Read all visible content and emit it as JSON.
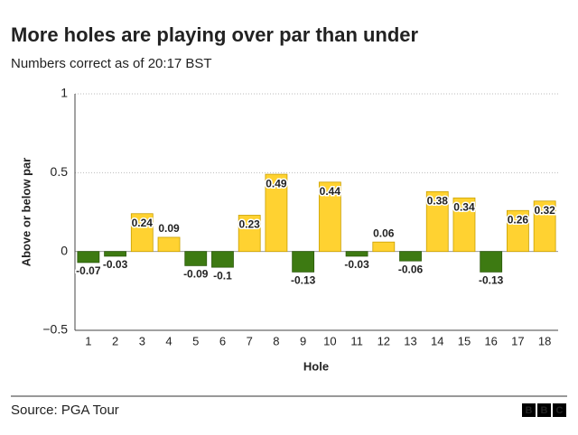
{
  "chart_data": {
    "type": "bar",
    "title": "More holes are playing over par than under",
    "subtitle": "Numbers correct as of 20:17 BST",
    "x_label": "Hole",
    "y_label": "Above or below par",
    "categories": [
      "1",
      "2",
      "3",
      "4",
      "5",
      "6",
      "7",
      "8",
      "9",
      "10",
      "11",
      "12",
      "13",
      "14",
      "15",
      "16",
      "17",
      "18"
    ],
    "values": [
      -0.07,
      -0.03,
      0.24,
      0.09,
      -0.09,
      -0.1,
      0.23,
      0.49,
      -0.13,
      0.44,
      -0.03,
      0.06,
      -0.06,
      0.38,
      0.34,
      -0.13,
      0.26,
      0.32
    ],
    "positive_color": "#ffd231",
    "negative_color": "#3d7a12",
    "ylim": [
      -0.5,
      1
    ],
    "yticks": [
      {
        "value": -0.5,
        "label": "−0.5"
      },
      0,
      0.5,
      1
    ],
    "grid": true,
    "source": "Source: PGA Tour",
    "logo": [
      "B",
      "B",
      "C"
    ]
  }
}
